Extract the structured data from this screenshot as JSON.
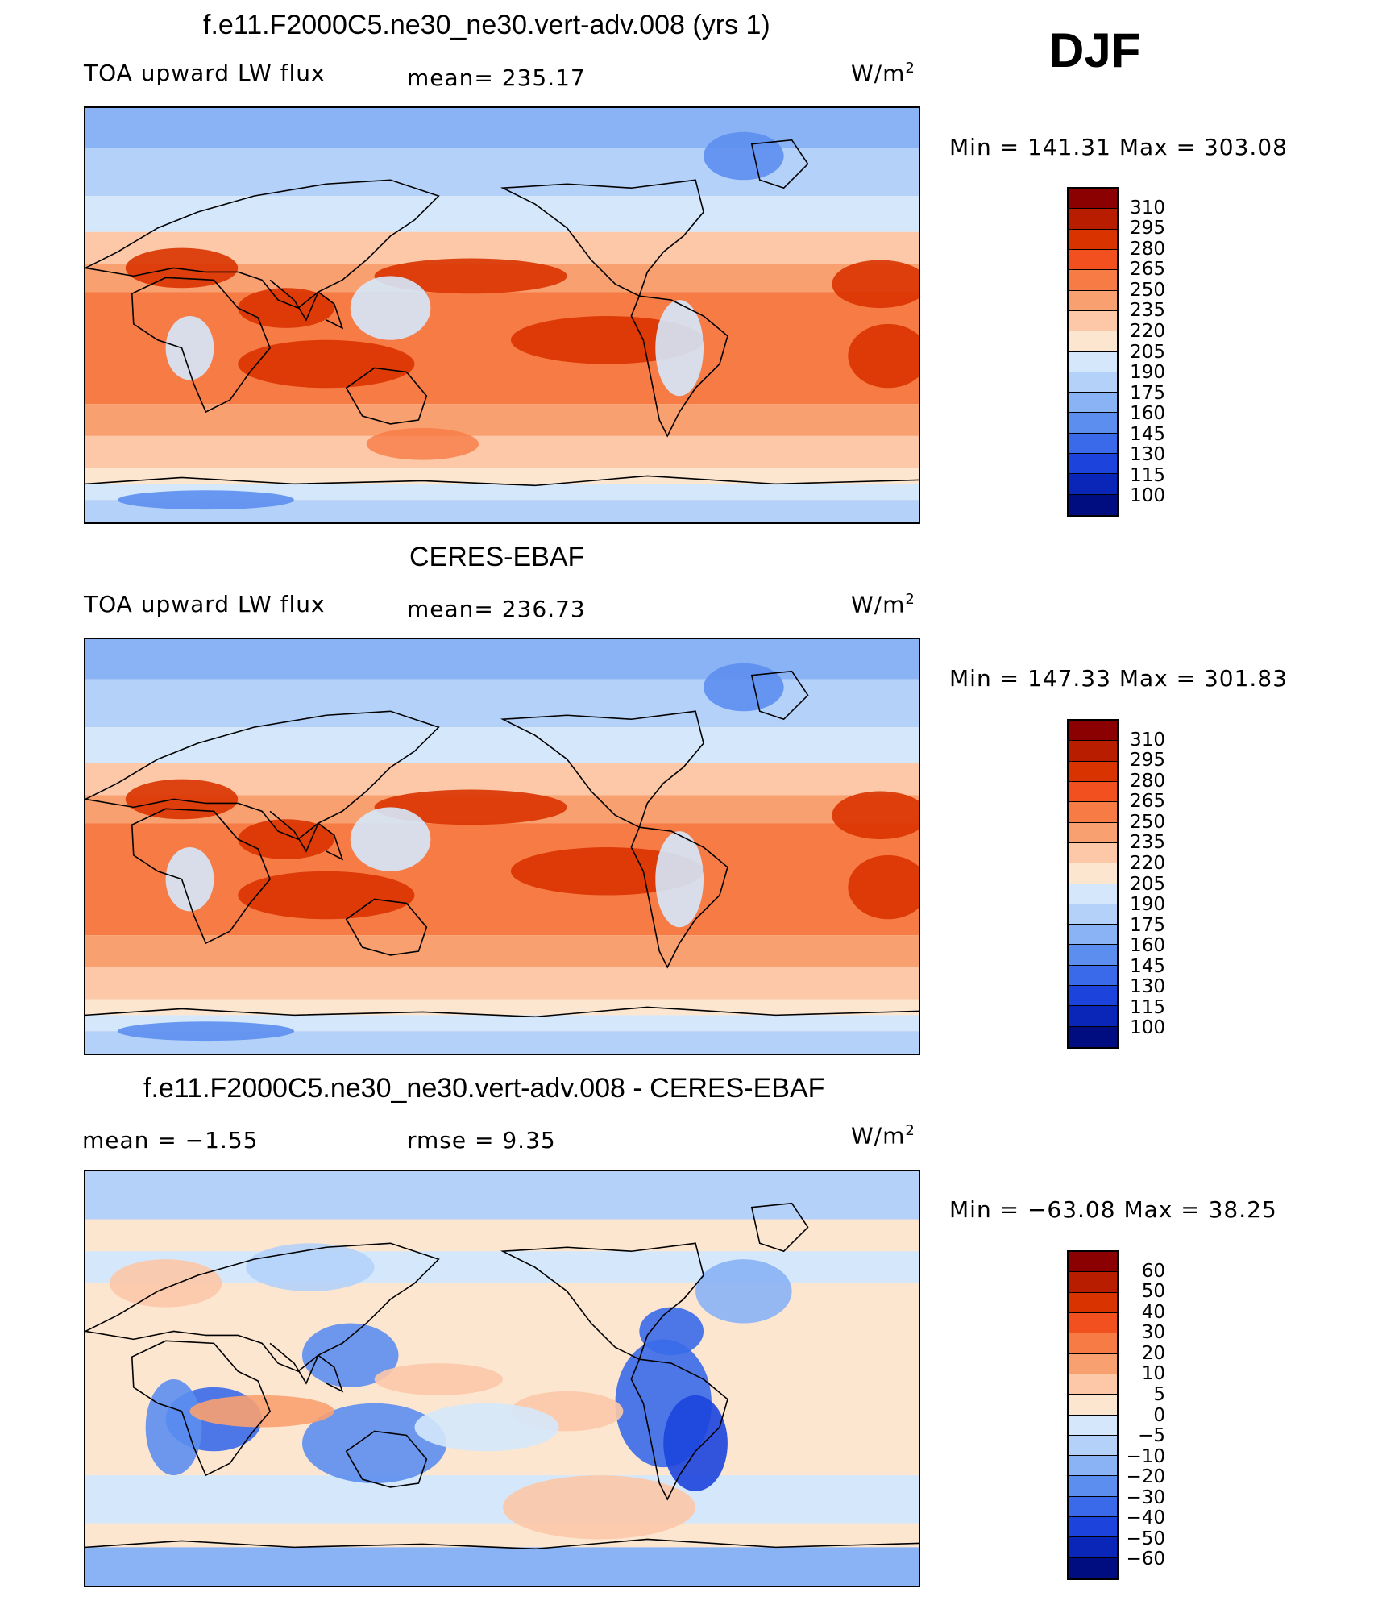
{
  "season": "DJF",
  "panels": [
    {
      "title": "f.e11.F2000C5.ne30_ne30.vert-adv.008 (yrs 1)",
      "left_label": "TOA upward LW flux",
      "center_label": "mean= 235.17",
      "units": "W/m",
      "units_sup": "2",
      "minmax": "Min = 141.31 Max = 303.08",
      "field": "model"
    },
    {
      "title": "CERES-EBAF",
      "left_label": "TOA upward LW flux",
      "center_label": "mean= 236.73",
      "units": "W/m",
      "units_sup": "2",
      "minmax": "Min = 147.33 Max = 301.83",
      "field": "obs"
    },
    {
      "title": "f.e11.F2000C5.ne30_ne30.vert-adv.008 - CERES-EBAF",
      "left_label": "mean =   −1.55",
      "center_label": "rmse =    9.35",
      "units": "W/m",
      "units_sup": "2",
      "minmax": "Min = −63.08 Max =   38.25",
      "field": "diff"
    }
  ],
  "colorbar_abs": {
    "levels": [
      "310",
      "295",
      "280",
      "265",
      "250",
      "235",
      "220",
      "205",
      "190",
      "175",
      "160",
      "145",
      "130",
      "115",
      "100"
    ],
    "colors": [
      "#8b0000",
      "#b81d00",
      "#d93300",
      "#f2501f",
      "#f77b45",
      "#f9a070",
      "#fcc8a8",
      "#fde6d0",
      "#d5e8fb",
      "#b4d1f9",
      "#8ab3f5",
      "#5c8ef0",
      "#3a6ae9",
      "#1c44dd",
      "#0a26b8",
      "#000d80"
    ]
  },
  "colorbar_diff": {
    "levels": [
      "60",
      "50",
      "40",
      "30",
      "20",
      "10",
      "5",
      "0",
      "−5",
      "−10",
      "−20",
      "−30",
      "−40",
      "−50",
      "−60"
    ],
    "colors": [
      "#8b0000",
      "#b81d00",
      "#d93300",
      "#f2501f",
      "#f77b45",
      "#f9a070",
      "#fcc8a8",
      "#fde6d0",
      "#d5e8fb",
      "#b4d1f9",
      "#8ab3f5",
      "#5c8ef0",
      "#3a6ae9",
      "#1c44dd",
      "#0a26b8",
      "#000d80"
    ]
  }
}
